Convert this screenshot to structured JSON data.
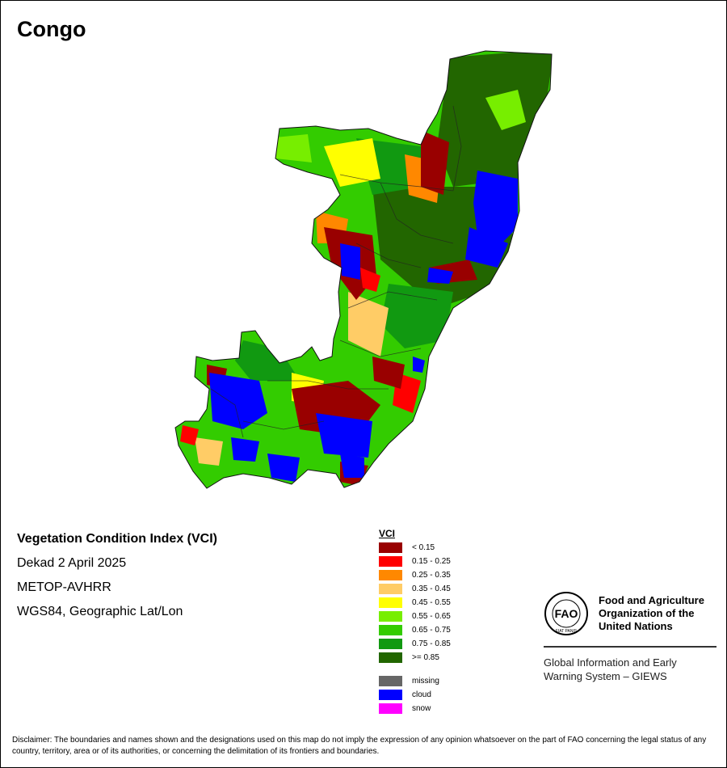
{
  "title": "Congo",
  "info": {
    "index_name": "Vegetation Condition Index (VCI)",
    "period": "Dekad 2 April 2025",
    "sensor": "METOP-AVHRR",
    "projection": "WGS84, Geographic Lat/Lon"
  },
  "legend": {
    "heading": "VCI",
    "classes": [
      {
        "label": "< 0.15",
        "color": "#990000"
      },
      {
        "label": "0.15 - 0.25",
        "color": "#ff0000"
      },
      {
        "label": "0.25 - 0.35",
        "color": "#ff8800"
      },
      {
        "label": "0.35 - 0.45",
        "color": "#ffcc66"
      },
      {
        "label": "0.45 - 0.55",
        "color": "#ffff00"
      },
      {
        "label": "0.55 - 0.65",
        "color": "#77ee00"
      },
      {
        "label": "0.65 - 0.75",
        "color": "#33cc00"
      },
      {
        "label": "0.75 - 0.85",
        "color": "#119911"
      },
      {
        "label": ">= 0.85",
        "color": "#226600"
      }
    ],
    "special": [
      {
        "label": "missing",
        "color": "#666666"
      },
      {
        "label": "cloud",
        "color": "#0000ff"
      },
      {
        "label": "snow",
        "color": "#ff00ff"
      }
    ]
  },
  "fao": {
    "logo_text": "FAO",
    "logo_motto": "FIAT PANIS",
    "org_line1": "Food and Agriculture",
    "org_line2": "Organization of the",
    "org_line3": "United Nations",
    "giews_line1": "Global Information and Early",
    "giews_line2": "Warning System – GIEWS"
  },
  "disclaimer": "Disclaimer: The boundaries and names shown and the designations used on this map do not imply the expression of any opinion whatsoever on the part of FAO concerning the legal status of any country, territory, area or of its authorities, or concerning the delimitation of its frontiers and boundaries."
}
